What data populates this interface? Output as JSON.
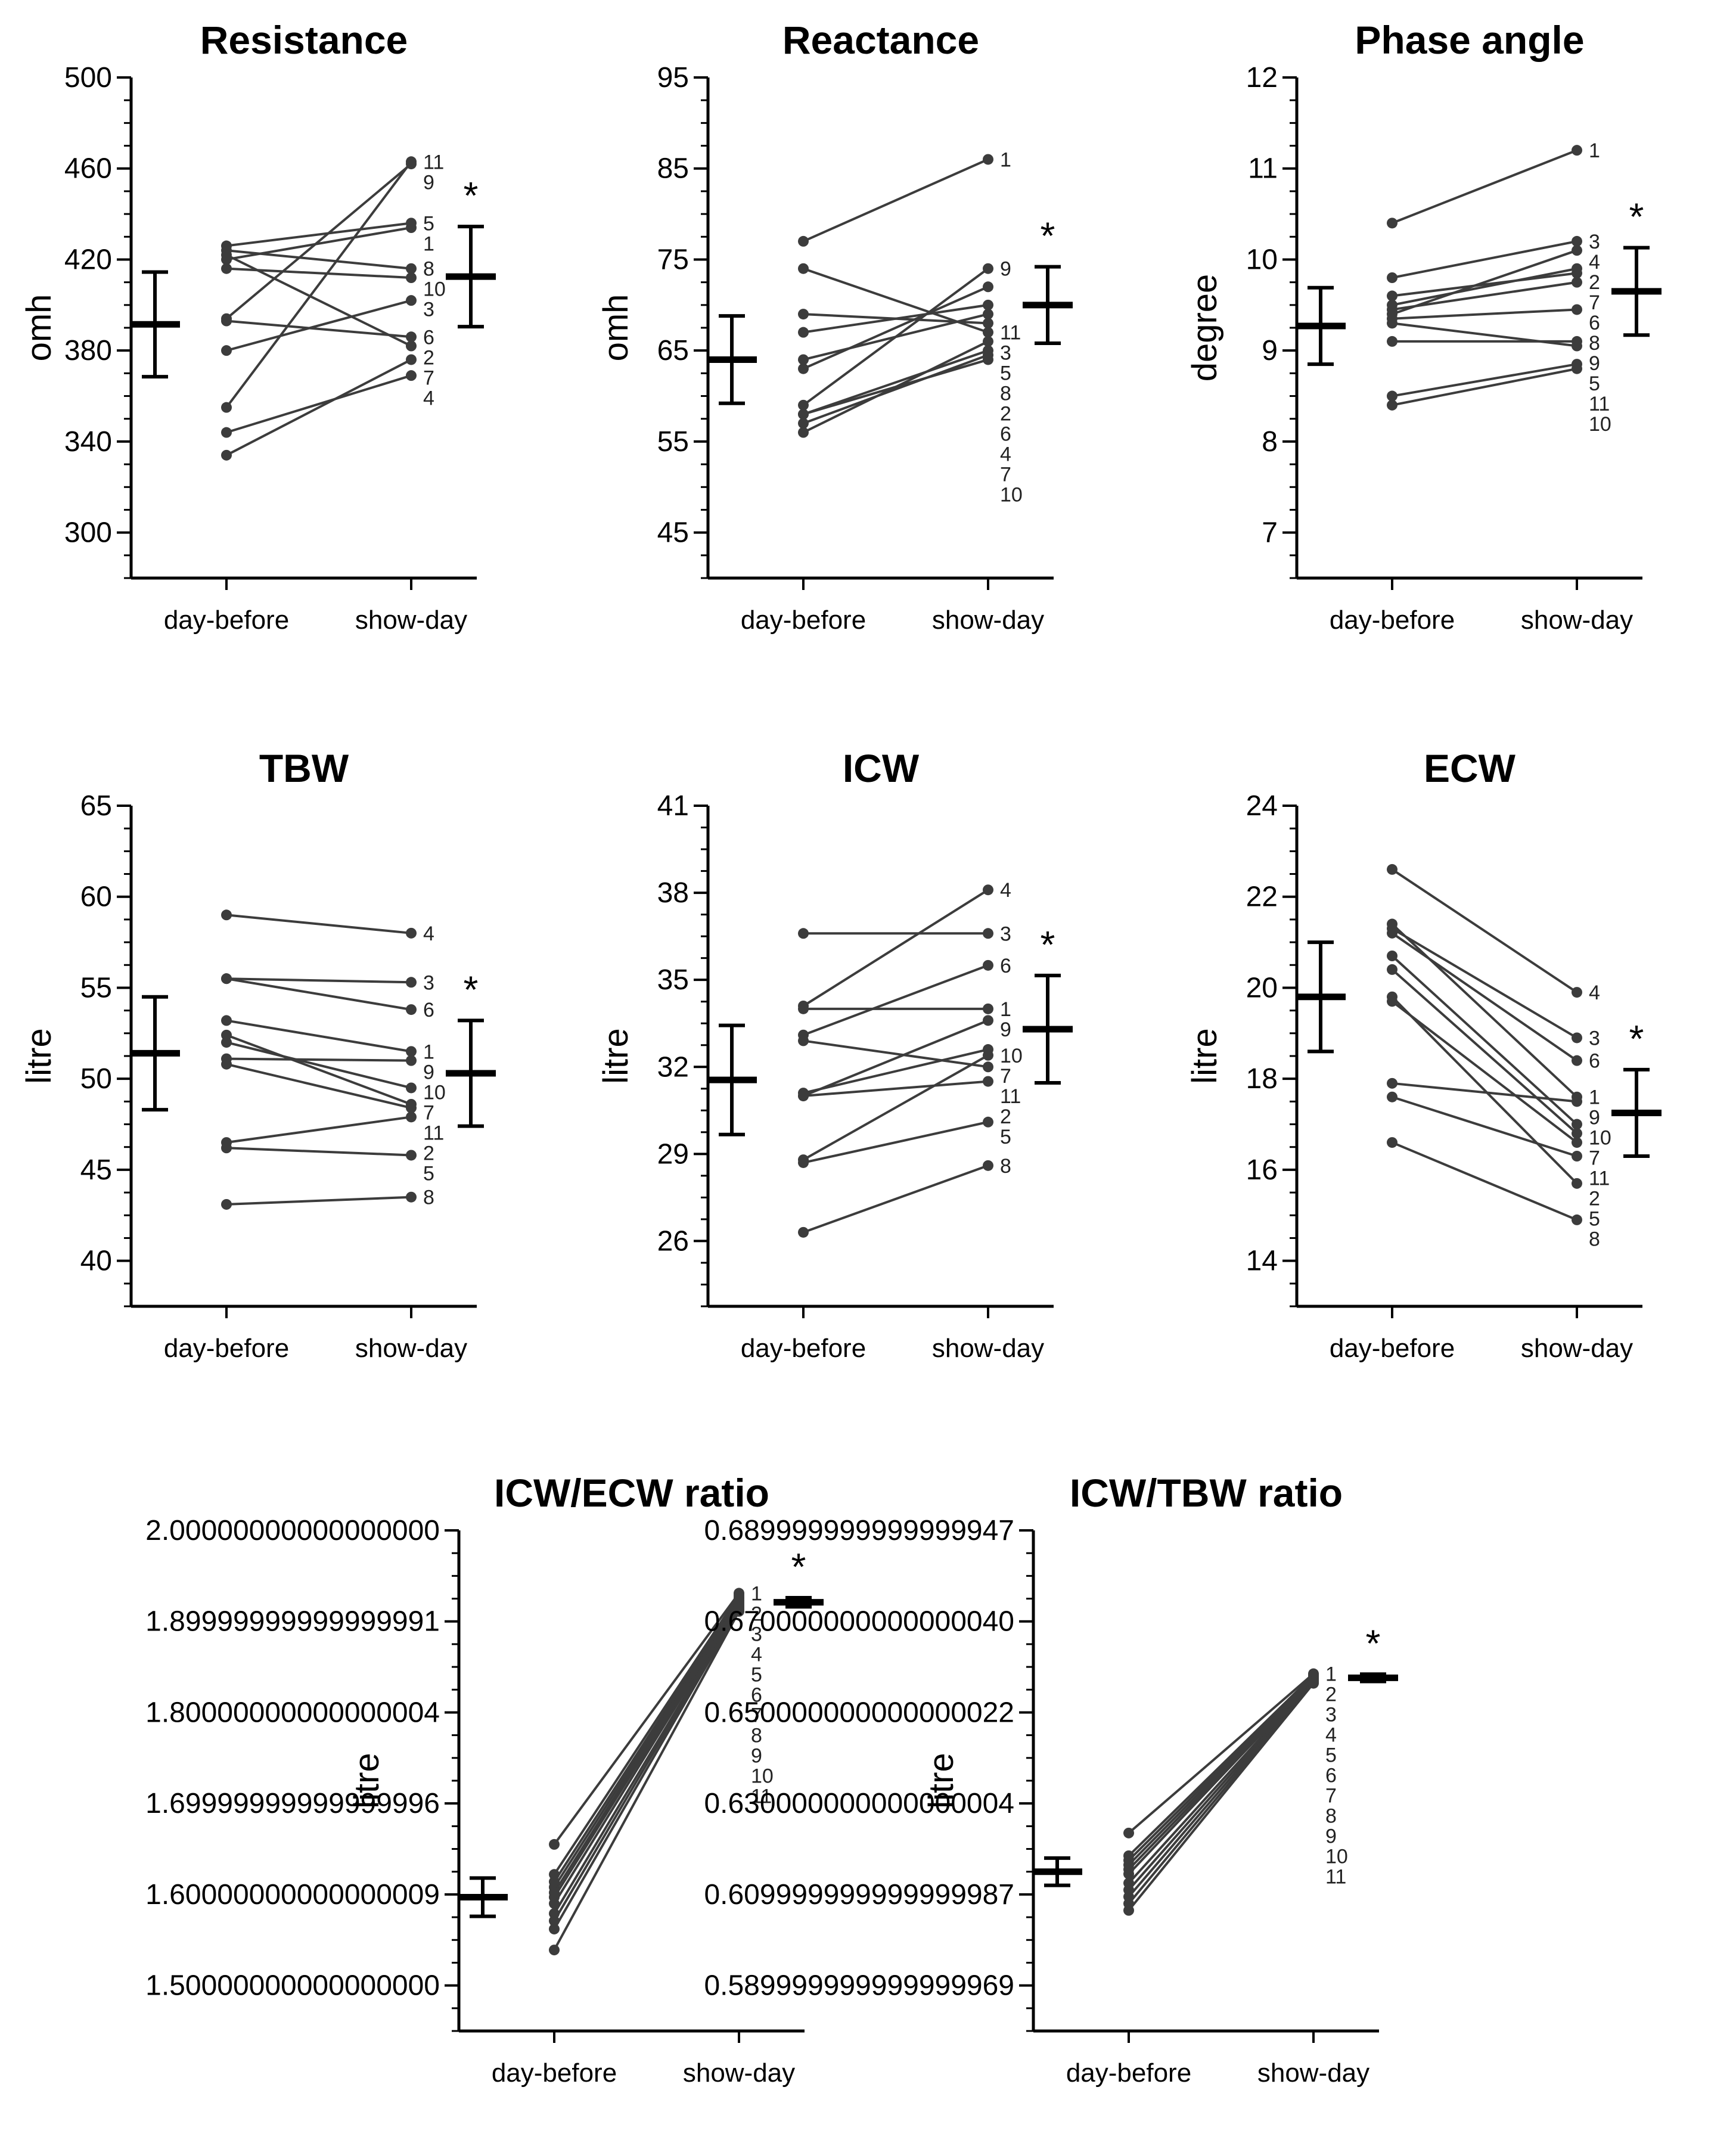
{
  "figure": {
    "categories": [
      "day-before",
      "show-day"
    ],
    "significance_marker": "*"
  },
  "chart_data": [
    {
      "type": "line",
      "title": "Resistance",
      "ylabel": "omh",
      "ylim": [
        280,
        500
      ],
      "yticks": [
        300,
        340,
        380,
        420,
        460,
        500
      ],
      "minor_step": 10,
      "x": [
        "day-before",
        "show-day"
      ],
      "subjects": [
        {
          "id": "1",
          "values": [
            420,
            434
          ]
        },
        {
          "id": "2",
          "values": [
            422,
            382
          ]
        },
        {
          "id": "3",
          "values": [
            380,
            402
          ]
        },
        {
          "id": "4",
          "values": [
            344,
            369
          ]
        },
        {
          "id": "5",
          "values": [
            426,
            436
          ]
        },
        {
          "id": "6",
          "values": [
            393,
            386
          ]
        },
        {
          "id": "7",
          "values": [
            334,
            376
          ]
        },
        {
          "id": "8",
          "values": [
            424,
            416
          ]
        },
        {
          "id": "9",
          "values": [
            394,
            462
          ]
        },
        {
          "id": "10",
          "values": [
            416,
            412
          ]
        },
        {
          "id": "11",
          "values": [
            355,
            463
          ]
        }
      ],
      "label_order": [
        "11",
        "9",
        "5",
        "1",
        "8",
        "10",
        "3",
        "6",
        "2",
        "7",
        "4"
      ],
      "summary": [
        {
          "mean": 391.5,
          "sd": 23
        },
        {
          "mean": 412.5,
          "sd": 22
        }
      ],
      "significant": true
    },
    {
      "type": "line",
      "title": "Reactance",
      "ylabel": "omh",
      "ylim": [
        40,
        95
      ],
      "yticks": [
        45,
        55,
        65,
        75,
        85,
        95
      ],
      "minor_step": 2.5,
      "x": [
        "day-before",
        "show-day"
      ],
      "subjects": [
        {
          "id": "1",
          "values": [
            77,
            86
          ]
        },
        {
          "id": "2",
          "values": [
            69,
            68
          ]
        },
        {
          "id": "3",
          "values": [
            63,
            72
          ]
        },
        {
          "id": "4",
          "values": [
            58,
            65
          ]
        },
        {
          "id": "5",
          "values": [
            67,
            70
          ]
        },
        {
          "id": "6",
          "values": [
            56,
            66
          ]
        },
        {
          "id": "7",
          "values": [
            57,
            64.5
          ]
        },
        {
          "id": "8",
          "values": [
            64,
            69
          ]
        },
        {
          "id": "9",
          "values": [
            59,
            74
          ]
        },
        {
          "id": "10",
          "values": [
            58,
            64
          ]
        },
        {
          "id": "11",
          "values": [
            74,
            67
          ]
        }
      ],
      "label_order": [
        "1",
        "9",
        "11",
        "3",
        "5",
        "8",
        "2",
        "6",
        "4",
        "7",
        "10"
      ],
      "summary": [
        {
          "mean": 64,
          "sd": 4.8
        },
        {
          "mean": 70,
          "sd": 4.2
        }
      ],
      "significant": true
    },
    {
      "type": "line",
      "title": "Phase angle",
      "ylabel": "degree",
      "ylim": [
        6.5,
        12
      ],
      "yticks": [
        7,
        8,
        9,
        10,
        11,
        12
      ],
      "minor_step": 0.25,
      "x": [
        "day-before",
        "show-day"
      ],
      "subjects": [
        {
          "id": "1",
          "values": [
            10.4,
            11.2
          ]
        },
        {
          "id": "2",
          "values": [
            9.5,
            9.9
          ]
        },
        {
          "id": "3",
          "values": [
            9.8,
            10.2
          ]
        },
        {
          "id": "4",
          "values": [
            9.4,
            10.1
          ]
        },
        {
          "id": "5",
          "values": [
            9.3,
            9.05
          ]
        },
        {
          "id": "6",
          "values": [
            9.6,
            9.85
          ]
        },
        {
          "id": "7",
          "values": [
            9.45,
            9.75
          ]
        },
        {
          "id": "8",
          "values": [
            9.35,
            9.45
          ]
        },
        {
          "id": "9",
          "values": [
            9.1,
            9.1
          ]
        },
        {
          "id": "10",
          "values": [
            8.4,
            8.8
          ]
        },
        {
          "id": "11",
          "values": [
            8.5,
            8.85
          ]
        }
      ],
      "label_order": [
        "1",
        "3",
        "4",
        "2",
        "7",
        "6",
        "8",
        "9",
        "5",
        "11",
        "10"
      ],
      "summary": [
        {
          "mean": 9.27,
          "sd": 0.42
        },
        {
          "mean": 9.65,
          "sd": 0.48
        }
      ],
      "significant": true
    },
    {
      "type": "line",
      "title": "TBW",
      "ylabel": "litre",
      "ylim": [
        37.5,
        65
      ],
      "yticks": [
        40,
        45,
        50,
        55,
        60,
        65
      ],
      "minor_step": 1.25,
      "x": [
        "day-before",
        "show-day"
      ],
      "subjects": [
        {
          "id": "1",
          "values": [
            53.2,
            51.5
          ]
        },
        {
          "id": "2",
          "values": [
            46.5,
            47.9
          ]
        },
        {
          "id": "3",
          "values": [
            55.5,
            55.3
          ]
        },
        {
          "id": "4",
          "values": [
            59,
            58
          ]
        },
        {
          "id": "5",
          "values": [
            46.2,
            45.8
          ]
        },
        {
          "id": "6",
          "values": [
            55.5,
            53.8
          ]
        },
        {
          "id": "7",
          "values": [
            52.4,
            48.6
          ]
        },
        {
          "id": "8",
          "values": [
            43.1,
            43.5
          ]
        },
        {
          "id": "9",
          "values": [
            51.1,
            51
          ]
        },
        {
          "id": "10",
          "values": [
            52,
            49.5
          ]
        },
        {
          "id": "11",
          "values": [
            50.8,
            48.4
          ]
        }
      ],
      "label_order": [
        "4",
        "3",
        "6",
        "1",
        "9",
        "10",
        "7",
        "11",
        "2",
        "5",
        "8"
      ],
      "summary": [
        {
          "mean": 51.4,
          "sd": 3.1
        },
        {
          "mean": 50.3,
          "sd": 2.9
        }
      ],
      "significant": true
    },
    {
      "type": "line",
      "title": "ICW",
      "ylabel": "litre",
      "ylim": [
        23.75,
        41
      ],
      "yticks": [
        26,
        29,
        32,
        35,
        38,
        41
      ],
      "minor_step": 0.75,
      "x": [
        "day-before",
        "show-day"
      ],
      "subjects": [
        {
          "id": "1",
          "values": [
            34,
            34
          ]
        },
        {
          "id": "2",
          "values": [
            31,
            31.5
          ]
        },
        {
          "id": "3",
          "values": [
            36.6,
            36.6
          ]
        },
        {
          "id": "4",
          "values": [
            34.1,
            38.1
          ]
        },
        {
          "id": "5",
          "values": [
            28.7,
            30.1
          ]
        },
        {
          "id": "6",
          "values": [
            33.1,
            35.5
          ]
        },
        {
          "id": "7",
          "values": [
            31.1,
            32.6
          ]
        },
        {
          "id": "8",
          "values": [
            26.3,
            28.6
          ]
        },
        {
          "id": "9",
          "values": [
            31,
            33.6
          ]
        },
        {
          "id": "10",
          "values": [
            28.8,
            32.4
          ]
        },
        {
          "id": "11",
          "values": [
            32.9,
            32
          ]
        }
      ],
      "label_order": [
        "4",
        "3",
        "6",
        "1",
        "9",
        "10",
        "7",
        "11",
        "2",
        "5",
        "8"
      ],
      "summary": [
        {
          "mean": 31.55,
          "sd": 1.88
        },
        {
          "mean": 33.3,
          "sd": 1.85
        }
      ],
      "significant": true
    },
    {
      "type": "line",
      "title": "ECW",
      "ylabel": "litre",
      "ylim": [
        13,
        24
      ],
      "yticks": [
        14,
        16,
        18,
        20,
        22,
        24
      ],
      "minor_step": 0.5,
      "x": [
        "day-before",
        "show-day"
      ],
      "subjects": [
        {
          "id": "1",
          "values": [
            21.4,
            17.6
          ]
        },
        {
          "id": "2",
          "values": [
            17.6,
            16.3
          ]
        },
        {
          "id": "3",
          "values": [
            21.3,
            18.9
          ]
        },
        {
          "id": "4",
          "values": [
            22.6,
            19.9
          ]
        },
        {
          "id": "5",
          "values": [
            19.8,
            15.7
          ]
        },
        {
          "id": "6",
          "values": [
            21.2,
            18.4
          ]
        },
        {
          "id": "7",
          "values": [
            20.4,
            16.8
          ]
        },
        {
          "id": "8",
          "values": [
            16.6,
            14.9
          ]
        },
        {
          "id": "9",
          "values": [
            17.9,
            17.5
          ]
        },
        {
          "id": "10",
          "values": [
            20.7,
            17
          ]
        },
        {
          "id": "11",
          "values": [
            19.7,
            16.6
          ]
        }
      ],
      "label_order": [
        "4",
        "3",
        "6",
        "1",
        "9",
        "10",
        "7",
        "11",
        "2",
        "5",
        "8"
      ],
      "summary": [
        {
          "mean": 19.8,
          "sd": 1.2
        },
        {
          "mean": 17.25,
          "sd": 0.95
        }
      ],
      "significant": true
    },
    {
      "type": "line",
      "title": "ICW/ECW ratio",
      "ylabel": "litre",
      "ylim": [
        1.45,
        2.0
      ],
      "yticks": [
        1.5,
        1.6,
        1.7,
        1.8,
        1.9,
        2.0
      ],
      "minor_step": 0.025,
      "x": [
        "day-before",
        "show-day"
      ],
      "subjects": [
        {
          "id": "1",
          "values": [
            1.655,
            1.931
          ]
        },
        {
          "id": "2",
          "values": [
            1.622,
            1.929
          ]
        },
        {
          "id": "3",
          "values": [
            1.614,
            1.927
          ]
        },
        {
          "id": "4",
          "values": [
            1.608,
            1.925
          ]
        },
        {
          "id": "5",
          "values": [
            1.602,
            1.923
          ]
        },
        {
          "id": "6",
          "values": [
            1.597,
            1.921
          ]
        },
        {
          "id": "7",
          "values": [
            1.59,
            1.919
          ]
        },
        {
          "id": "8",
          "values": [
            1.579,
            1.917
          ]
        },
        {
          "id": "9",
          "values": [
            1.571,
            1.915
          ]
        },
        {
          "id": "10",
          "values": [
            1.562,
            1.913
          ]
        },
        {
          "id": "11",
          "values": [
            1.539,
            1.911
          ]
        }
      ],
      "label_order": [
        "1",
        "2",
        "3",
        "4",
        "5",
        "6",
        "7",
        "8",
        "9",
        "10",
        "11"
      ],
      "summary": [
        {
          "mean": 1.597,
          "sd": 0.021
        },
        {
          "mean": 1.921,
          "sd": 0.005
        }
      ],
      "significant": true
    },
    {
      "type": "line",
      "title": "ICW/TBW ratio",
      "ylabel": "litre",
      "ylim": [
        0.58,
        0.69
      ],
      "yticks": [
        0.59,
        0.61,
        0.63,
        0.65,
        0.67,
        0.69
      ],
      "minor_step": 0.005,
      "x": [
        "day-before",
        "show-day"
      ],
      "subjects": [
        {
          "id": "1",
          "values": [
            0.6235,
            0.6585
          ]
        },
        {
          "id": "2",
          "values": [
            0.6185,
            0.6582
          ]
        },
        {
          "id": "3",
          "values": [
            0.6175,
            0.658
          ]
        },
        {
          "id": "4",
          "values": [
            0.6165,
            0.6578
          ]
        },
        {
          "id": "5",
          "values": [
            0.6155,
            0.6576
          ]
        },
        {
          "id": "6",
          "values": [
            0.6145,
            0.6574
          ]
        },
        {
          "id": "7",
          "values": [
            0.6125,
            0.6572
          ]
        },
        {
          "id": "8",
          "values": [
            0.611,
            0.657
          ]
        },
        {
          "id": "9",
          "values": [
            0.6095,
            0.6568
          ]
        },
        {
          "id": "10",
          "values": [
            0.608,
            0.6566
          ]
        },
        {
          "id": "11",
          "values": [
            0.6065,
            0.6564
          ]
        }
      ],
      "label_order": [
        "1",
        "2",
        "3",
        "4",
        "5",
        "6",
        "7",
        "8",
        "9",
        "10",
        "11"
      ],
      "summary": [
        {
          "mean": 0.615,
          "sd": 0.003
        },
        {
          "mean": 0.6576,
          "sd": 0.0008
        }
      ],
      "significant": true
    }
  ]
}
